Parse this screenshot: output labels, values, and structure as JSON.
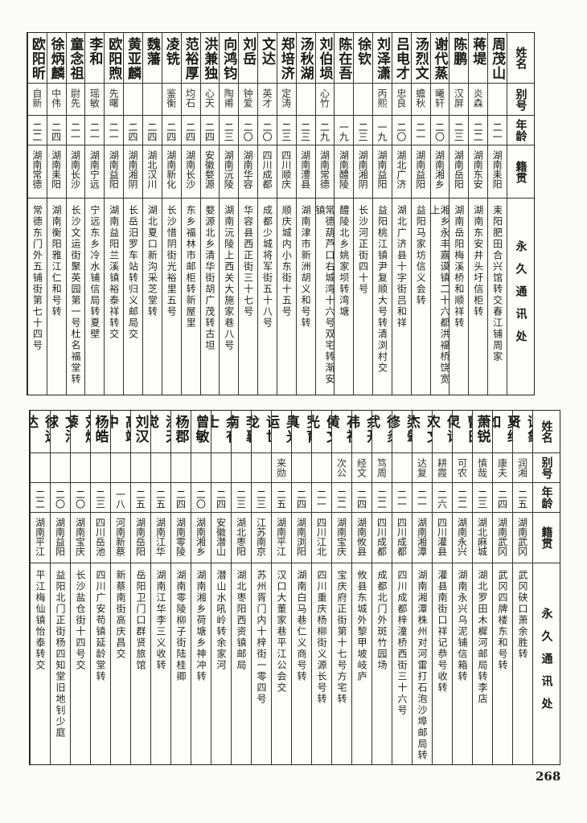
{
  "headers": {
    "name": "姓名",
    "alias": "别号",
    "age": "年龄",
    "origin": "籍贯",
    "address": "永久通讯处"
  },
  "page_number": "268",
  "top_table": [
    {
      "name": "周茂山",
      "alias": "",
      "age": "二一",
      "origin": "湖南耒阳",
      "address": "耒阳肥田合兴馆转交春江铺周家"
    },
    {
      "name": "蒋堤",
      "alias": "炎森",
      "age": "二二",
      "origin": "湖南东安",
      "address": "湖南东安井头圩信柜转"
    },
    {
      "name": "陈鹏",
      "alias": "汉屏",
      "age": "二三",
      "origin": "湖南岳阳",
      "address": "湖南岳阳梅溪桥和顺祥转"
    },
    {
      "name": "谢代蒸",
      "alias": "曦轩",
      "age": "二〇",
      "origin": "湖南湘乡",
      "address": "湘乡永丰嘉谟镇二十六都洪福桥饶宽上"
    },
    {
      "name": "汤烈文",
      "alias": "蟾秋",
      "age": "二一",
      "origin": "湖南益阳",
      "address": "益阳马家坊信义会转"
    },
    {
      "name": "吕电才",
      "alias": "忠良",
      "age": "二〇",
      "origin": "湖北广济",
      "address": "湖北广济县十字街吕和祥"
    },
    {
      "name": "刘泽潇",
      "alias": "丙熙",
      "age": "一九",
      "origin": "湖南益阳",
      "address": "益阳桃江镇尹复顺大号转清浏村交"
    },
    {
      "name": "徐钦",
      "alias": "",
      "age": "二三",
      "origin": "湖南湘阴",
      "address": "长沙河正街四十号"
    },
    {
      "name": "陈在吾",
      "alias": "",
      "age": "一九",
      "origin": "湖南醴陵",
      "address": "醴陵北乡姚家坝转湾塘"
    },
    {
      "name": "刘伯埙",
      "alias": "心竹",
      "age": "二九",
      "origin": "湖南常德",
      "address": "常德葫芦口右城湾十六号双宅转渐安镇"
    },
    {
      "name": "汤秋湖",
      "alias": "",
      "age": "二三",
      "origin": "湖南澧县",
      "address": "湖南津市新洲胡义和号转"
    },
    {
      "name": "郑培济",
      "alias": "定涛",
      "age": "二三",
      "origin": "四川顺庆",
      "address": "顺庆城内小东街十五号"
    },
    {
      "name": "文达",
      "alias": "英才",
      "age": "二〇",
      "origin": "四川成都",
      "address": "成都少城将军街五十八号"
    },
    {
      "name": "刘岳",
      "alias": "钟爱",
      "age": "二〇",
      "origin": "湖南华容",
      "address": "华容县西正街三十七号"
    },
    {
      "name": "向鸿钧",
      "alias": "陶甫",
      "age": "二三",
      "origin": "湖南沅陵",
      "address": "湖南沅陵上西关大施家巷八号"
    },
    {
      "name": "洪兼独",
      "alias": "心天",
      "age": "二四",
      "origin": "安徽婺源",
      "address": "婺源北乡清华街胡广茂转古坦"
    },
    {
      "name": "范裕厚",
      "alias": "均石",
      "age": "二四",
      "origin": "湖南长沙",
      "address": "东乡福林市邮柜转新屋里"
    },
    {
      "name": "凌铣",
      "alias": "鉴衡",
      "age": "二四",
      "origin": "湖南新化",
      "address": "长沙惜阴街光裕里五号"
    },
    {
      "name": "魏藩",
      "alias": "",
      "age": "二四",
      "origin": "湖北汉川",
      "address": "湖北夏口新沟采芝堂转"
    },
    {
      "name": "黄亚麟",
      "alias": "",
      "age": "二四",
      "origin": "湖南湘阴",
      "address": "长岳汨罗车站转归义邮局交"
    },
    {
      "name": "欧阳煦",
      "alias": "先曙",
      "age": "二一",
      "origin": "湖南益阳",
      "address": "湖南益阳兰溪镇裕泰祥转交"
    },
    {
      "name": "李和",
      "alias": "瑶敏",
      "age": "二一",
      "origin": "湖南宁远",
      "address": "宁远东乡冷水铺信局转夏壁"
    },
    {
      "name": "童念祖",
      "alias": "尉先",
      "age": "二一",
      "origin": "湖南长沙",
      "address": "长沙文运街聚英园第一号杜名福堂转"
    },
    {
      "name": "徐炳麟",
      "alias": "中伟",
      "age": "二四",
      "origin": "湖南耒阳",
      "address": "湖南衡阳雅江仁和号转"
    },
    {
      "name": "欧阳昕",
      "alias": "自新",
      "age": "二二",
      "origin": "湖南常德",
      "address": "常德东门外五铺街第七十四号"
    }
  ],
  "bottom_table": [
    {
      "name": "谭象贤",
      "alias": "润湘",
      "age": "二五",
      "origin": "湖南武冈",
      "address": "武冈硖口萧余胜转"
    },
    {
      "name": "夏绎如",
      "alias": "康夫",
      "age": "二四",
      "origin": "湖南武冈",
      "address": "武冈四牌楼东和号转"
    },
    {
      "name": "萧锐",
      "alias": "慎哉",
      "age": "二三",
      "origin": "湖北麻城",
      "address": "湖北罗田木樨河邮局转李店"
    },
    {
      "name": "曹日灵",
      "alias": "可农",
      "age": "二二",
      "origin": "湖南永兴",
      "address": "湖南永兴乌泥铺信箱转"
    },
    {
      "name": "傅诗农",
      "alias": "耕霞",
      "age": "二六",
      "origin": "四川灌县",
      "address": "灌县南街口祥记恭号收转"
    },
    {
      "name": "邓文杰",
      "alias": "达复",
      "age": "二一",
      "origin": "湖南湘潭",
      "address": "湖南湘潭株州对河雷打石泡沙埠邮局转"
    },
    {
      "name": "梁肇修",
      "alias": "",
      "age": "二一",
      "origin": "四川成都",
      "address": "四川成都梓潼桥西街三十六号"
    },
    {
      "name": "徐炎武",
      "alias": "笃周",
      "age": "二二",
      "origin": "四川成都",
      "address": "成都北门外斑竹园场"
    },
    {
      "name": "余开纬",
      "alias": "经文",
      "age": "二四",
      "origin": "湖南攸县",
      "address": "攸县东城外黎甲坡岐庐"
    },
    {
      "name": "石祖黄",
      "alias": "次公",
      "age": "二二",
      "origin": "湖南宝庆",
      "address": "宝庆府正街第十七号方宅转"
    },
    {
      "name": "侯文光",
      "alias": "",
      "age": "二一",
      "origin": "四川江北",
      "address": "四川重庆杨柳街义源长号转"
    },
    {
      "name": "罗育真",
      "alias": "",
      "age": "二四",
      "origin": "湖南浏阳",
      "address": "湖南白马巷仁义商号转"
    },
    {
      "name": "吴光运",
      "alias": "来勋",
      "age": "二五",
      "origin": "湖南平江",
      "address": "汉口大董家巷平江公会交"
    },
    {
      "name": "许世龙",
      "alias": "",
      "age": "二三",
      "origin": "江苏南京",
      "address": "苏州胥门内十梓街一零四号"
    },
    {
      "name": "李襄南",
      "alias": "",
      "age": "二三",
      "origin": "湖北枣阳",
      "address": "湖北枣阳西资镇邮局"
    },
    {
      "name": "余有士",
      "alias": "",
      "age": "二四",
      "origin": "安徽潜山",
      "address": "潜山水吼岭转余家河"
    },
    {
      "name": "曾敏",
      "alias": "",
      "age": "二〇",
      "origin": "湖南湘乡",
      "address": "湖南湘乡荷塘乡神冲转"
    },
    {
      "name": "杨郡",
      "alias": "",
      "age": "二四",
      "origin": "湖南零陵",
      "address": "湖南零陵柳子街陆桂卿"
    },
    {
      "name": "涂天觉",
      "alias": "",
      "age": "二五",
      "origin": "湖南江华",
      "address": "湖南江华李三义收转"
    },
    {
      "name": "刘汉",
      "alias": "",
      "age": "二五",
      "origin": "湖南岳阳",
      "address": "岳阳卫门口群贤旅馆"
    },
    {
      "name": "高靖中",
      "alias": "",
      "age": "一八",
      "origin": "河南新蔡",
      "address": "新蔡南街高庆昌交"
    },
    {
      "name": "杨皓",
      "alias": "",
      "age": "二三",
      "origin": "四川岳池",
      "address": "四川广安苟镇延龄堂转"
    },
    {
      "name": "刘焕藜",
      "alias": "",
      "age": "二〇",
      "origin": "湖南宝庆",
      "address": "长沙盐仓街十四号交"
    },
    {
      "name": "文治球",
      "alias": "",
      "age": "二〇",
      "origin": "湖南益阳",
      "address": "益阳北门正街杨四知堂旧地钊少庭"
    },
    {
      "name": "徐远达",
      "alias": "",
      "age": "二二",
      "origin": "湖南平江",
      "address": "平江梅仙镇怡泰转交"
    }
  ]
}
